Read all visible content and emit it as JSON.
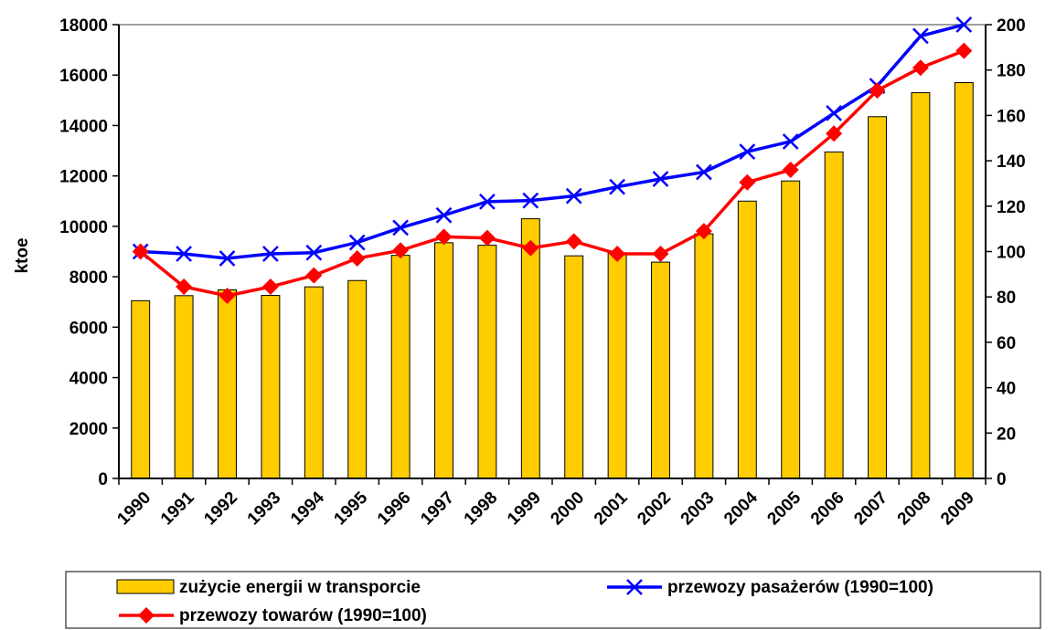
{
  "chart_data": {
    "type": "bar",
    "categories": [
      "1990",
      "1991",
      "1992",
      "1993",
      "1994",
      "1995",
      "1996",
      "1997",
      "1998",
      "1999",
      "2000",
      "2001",
      "2002",
      "2003",
      "2004",
      "2005",
      "2006",
      "2007",
      "2008",
      "2009"
    ],
    "ylabel": "ktoe",
    "ylim": [
      0,
      18000
    ],
    "y_ticks": [
      0,
      2000,
      4000,
      6000,
      8000,
      10000,
      12000,
      14000,
      16000,
      18000
    ],
    "y2lim": [
      0,
      200
    ],
    "y2_ticks": [
      0,
      20,
      40,
      60,
      80,
      100,
      120,
      140,
      160,
      180,
      200
    ],
    "grid": false,
    "legend_position": "bottom",
    "series": [
      {
        "name": "zużycie energii w transporcie",
        "type": "bar",
        "axis": "left",
        "color": "#FFCC00",
        "values": [
          7050,
          7250,
          7480,
          7260,
          7600,
          7850,
          8850,
          9350,
          9250,
          10300,
          8830,
          8950,
          8580,
          9700,
          11000,
          11800,
          12950,
          14350,
          15300,
          15700
        ]
      },
      {
        "name": "przewozy pasażerów (1990=100)",
        "type": "line",
        "axis": "right",
        "color": "#0000FF",
        "marker": "x",
        "values": [
          100,
          99,
          97,
          99,
          99.5,
          104,
          110.5,
          116,
          122,
          122.5,
          124.5,
          128.5,
          132,
          135,
          144,
          148.5,
          161,
          173,
          195,
          200
        ]
      },
      {
        "name": "przewozy towarów (1990=100)",
        "type": "line",
        "axis": "right",
        "color": "#FF0000",
        "marker": "diamond",
        "values": [
          100,
          84.5,
          80.5,
          84.5,
          89.5,
          97,
          100.5,
          106.5,
          106,
          101.5,
          104.5,
          99,
          99,
          109,
          130.5,
          136,
          152,
          171,
          181,
          188.5
        ]
      }
    ]
  }
}
